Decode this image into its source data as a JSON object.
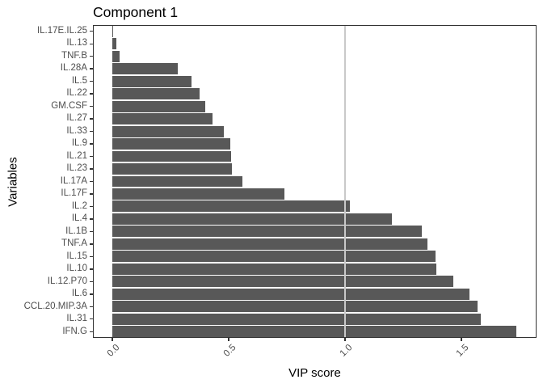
{
  "chart_data": {
    "type": "bar",
    "orientation": "horizontal",
    "title": "Component 1",
    "xlabel": "VIP score",
    "ylabel": "Variables",
    "categories": [
      "IL.17E.IL.25",
      "IL.13",
      "TNF.B",
      "IL.28A",
      "IL.5",
      "IL.22",
      "GM.CSF",
      "IL.27",
      "IL.33",
      "IL.9",
      "IL.21",
      "IL.23",
      "IL.17A",
      "IL.17F",
      "IL.2",
      "IL.4",
      "IL.1B",
      "TNF.A",
      "IL.15",
      "IL.10",
      "IL.12.P70",
      "IL.6",
      "CCL.20.MIP.3A",
      "IL.31",
      "IFN.G"
    ],
    "values": [
      0.005,
      0.018,
      0.031,
      0.28,
      0.34,
      0.375,
      0.4,
      0.43,
      0.48,
      0.507,
      0.51,
      0.514,
      0.56,
      0.74,
      1.02,
      1.2,
      1.33,
      1.355,
      1.39,
      1.392,
      1.465,
      1.535,
      1.57,
      1.583,
      1.735
    ],
    "x_ticks": [
      {
        "value": 0.0,
        "label": "0.0"
      },
      {
        "value": 0.5,
        "label": "0.5"
      },
      {
        "value": 1.0,
        "label": "1.0"
      },
      {
        "value": 1.5,
        "label": "1.5"
      }
    ],
    "xlim": [
      -0.085,
      1.823
    ],
    "reference_line_x": 1.0,
    "grid": false,
    "legend": "none",
    "colors": {
      "bar_fill": "#585858",
      "reference_line": "#c9c9c9",
      "panel_border": "#333333",
      "axis_text": "#4d4d4d",
      "title_text": "#000000"
    }
  }
}
